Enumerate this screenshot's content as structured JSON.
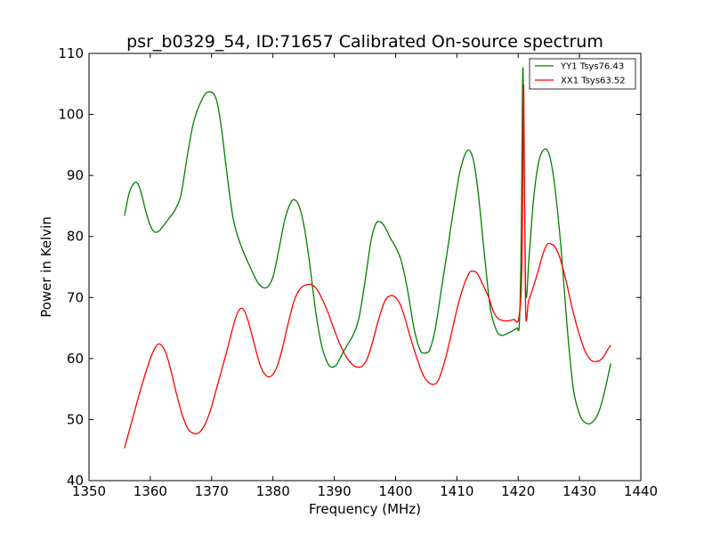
{
  "chart_data": {
    "type": "line",
    "title": "psr_b0329_54, ID:71657 Calibrated On-source spectrum",
    "xlabel": "Frequency (MHz)",
    "ylabel": "Power in Kelvin",
    "xlim": [
      1350,
      1440
    ],
    "ylim": [
      40,
      110
    ],
    "xticks": [
      1350,
      1360,
      1370,
      1380,
      1390,
      1400,
      1410,
      1420,
      1430,
      1440
    ],
    "yticks": [
      40,
      50,
      60,
      70,
      80,
      90,
      100,
      110
    ],
    "legend_position": "top-right",
    "grid": false,
    "series": [
      {
        "name": "YY1 Tsys76.43",
        "color": "#008000",
        "x": [
          1355.8,
          1356.5,
          1357.3,
          1358,
          1358.6,
          1359.3,
          1360,
          1360.6,
          1361.3,
          1362,
          1363,
          1364,
          1365,
          1366,
          1367,
          1368,
          1369,
          1369.7,
          1370.4,
          1371,
          1371.7,
          1372.5,
          1373.5,
          1374.5,
          1376,
          1377.5,
          1378.5,
          1379.3,
          1380.1,
          1381,
          1382,
          1383,
          1383.7,
          1384.4,
          1385.2,
          1386,
          1387,
          1388,
          1389,
          1389.7,
          1390.4,
          1391,
          1392,
          1393,
          1394,
          1395,
          1396,
          1396.8,
          1397.5,
          1398.3,
          1399.1,
          1400,
          1401,
          1402,
          1403,
          1404,
          1404.8,
          1405.6,
          1406.5,
          1407.5,
          1408.5,
          1409.5,
          1410.5,
          1411.5,
          1412.2,
          1412.8,
          1413.5,
          1414.5,
          1415.5,
          1416.5,
          1417.3,
          1418,
          1419,
          1419.8,
          1420.2,
          1420.5,
          1420.8,
          1421.2,
          1421.8,
          1422.5,
          1423.3,
          1424,
          1424.7,
          1425.3,
          1426,
          1427,
          1428,
          1429,
          1430,
          1430.7,
          1431.4,
          1432,
          1432.7,
          1433.5,
          1434.3,
          1435.1
        ],
        "y": [
          83.4,
          86.9,
          88.7,
          88.6,
          86.8,
          84.0,
          81.8,
          80.8,
          80.8,
          81.6,
          82.9,
          84.3,
          86.8,
          93.0,
          98.5,
          101.5,
          103.4,
          103.7,
          103.3,
          101.5,
          97.0,
          90.3,
          83.0,
          79.3,
          75.6,
          72.5,
          71.6,
          71.9,
          73.7,
          78.0,
          83.0,
          85.7,
          85.9,
          84.6,
          81.0,
          75.5,
          67.5,
          61.9,
          59.1,
          58.6,
          59.0,
          60.2,
          62.0,
          63.7,
          66.5,
          72.5,
          79.3,
          82.1,
          82.4,
          81.5,
          79.8,
          78.3,
          75.8,
          71.0,
          65.0,
          61.4,
          60.9,
          61.5,
          65.0,
          71.5,
          78.0,
          84.7,
          90.6,
          93.8,
          93.9,
          92.0,
          87.0,
          77.0,
          68.0,
          64.5,
          63.8,
          64.0,
          64.5,
          65.0,
          65.8,
          80.0,
          107.6,
          71.5,
          77.0,
          86.0,
          92.0,
          94.0,
          94.2,
          92.5,
          88.0,
          78.0,
          65.0,
          55.0,
          50.9,
          49.7,
          49.3,
          49.5,
          50.3,
          52.3,
          55.5,
          59.2
        ]
      },
      {
        "name": "XX1 Tsys63.52",
        "color": "#ff0000",
        "x": [
          1355.8,
          1357,
          1358.5,
          1360,
          1361,
          1361.7,
          1362.5,
          1363.3,
          1364.2,
          1365.2,
          1366.2,
          1367.2,
          1368,
          1368.8,
          1369.8,
          1371,
          1372.5,
          1373.8,
          1374.6,
          1375.3,
          1376,
          1377,
          1378,
          1379,
          1379.8,
          1380.6,
          1381.5,
          1382.5,
          1383.5,
          1384.5,
          1385.5,
          1386.3,
          1387.2,
          1388,
          1389,
          1390,
          1391,
          1392,
          1393,
          1393.8,
          1394.5,
          1395.3,
          1396.2,
          1397.2,
          1398.3,
          1399.2,
          1400,
          1400.8,
          1401.5,
          1402.5,
          1403.5,
          1404.5,
          1405.5,
          1406.3,
          1407,
          1408,
          1409,
          1410,
          1411,
          1412,
          1412.6,
          1413.3,
          1414.2,
          1415.2,
          1416,
          1416.8,
          1417.7,
          1418.5,
          1419.3,
          1420.1,
          1420.6,
          1420.9,
          1421.2,
          1421.7,
          1422.5,
          1423.3,
          1424,
          1424.7,
          1425.3,
          1426,
          1426.8,
          1427.8,
          1428.8,
          1429.8,
          1430.8,
          1431.8,
          1432.7,
          1433.7,
          1434.5,
          1435.1
        ],
        "y": [
          45.3,
          49.8,
          55.2,
          60.0,
          62.1,
          62.3,
          61.0,
          58.3,
          54.5,
          50.8,
          48.4,
          47.7,
          47.9,
          49.0,
          51.5,
          55.8,
          61.3,
          66.3,
          68.1,
          67.9,
          66.0,
          62.2,
          58.7,
          57.1,
          57.2,
          58.5,
          61.5,
          65.8,
          69.6,
          71.5,
          72.1,
          72.1,
          71.3,
          69.8,
          67.5,
          64.7,
          62.2,
          60.2,
          59.0,
          58.6,
          58.7,
          59.8,
          62.5,
          66.3,
          69.5,
          70.3,
          70.0,
          68.8,
          66.7,
          63.2,
          60.0,
          57.3,
          56.0,
          55.8,
          56.5,
          59.5,
          63.6,
          68.0,
          71.6,
          74.0,
          74.3,
          74.0,
          72.2,
          70.0,
          67.6,
          66.5,
          66.2,
          66.2,
          66.4,
          66.6,
          75.0,
          104.8,
          68.5,
          69.5,
          71.8,
          74.5,
          77.0,
          78.7,
          78.8,
          78.3,
          76.5,
          72.8,
          68.3,
          64.5,
          61.5,
          59.8,
          59.5,
          60.0,
          61.3,
          62.2
        ]
      }
    ]
  }
}
